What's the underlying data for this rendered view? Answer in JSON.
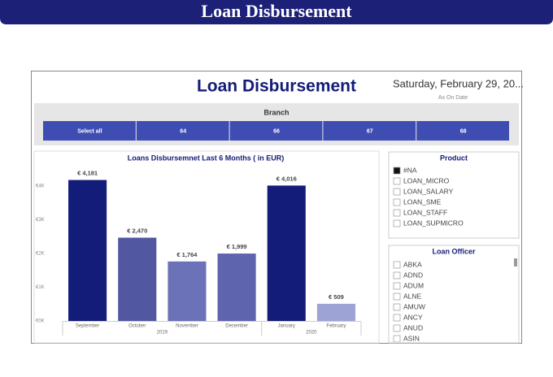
{
  "banner": {
    "title": "Loan Disbursement"
  },
  "header": {
    "title": "Loan Disbursement",
    "date": "Saturday, February 29, 20...",
    "date_caption": "As On Date"
  },
  "branch": {
    "title": "Branch",
    "options": [
      "Select all",
      "64",
      "66",
      "67",
      "68"
    ]
  },
  "chart_data": {
    "type": "bar",
    "title": "Loans Disbursemnet Last 6 Months ( in EUR)",
    "categories": [
      "September",
      "October",
      "November",
      "December",
      "January",
      "February"
    ],
    "groups": [
      "2019",
      "2020"
    ],
    "values": [
      4181,
      2470,
      1764,
      1999,
      4016,
      509
    ],
    "value_labels": [
      "€ 4,181",
      "€ 2,470",
      "€ 1,764",
      "€ 1,999",
      "€ 4,016",
      "€ 509"
    ],
    "colors": [
      "#131c78",
      "#5157a1",
      "#6b72b8",
      "#5e64ad",
      "#131c78",
      "#9ea3d6"
    ],
    "ylim": [
      0,
      4700
    ],
    "yticks": [
      {
        "value": 0,
        "label": "€0K"
      },
      {
        "value": 1000,
        "label": "€1K"
      },
      {
        "value": 2000,
        "label": "€2K"
      },
      {
        "value": 3000,
        "label": "€3K"
      },
      {
        "value": 4000,
        "label": "€4K"
      }
    ],
    "grid": false
  },
  "product": {
    "title": "Product",
    "items": [
      {
        "label": "#NA",
        "checked": true
      },
      {
        "label": "LOAN_MICRO",
        "checked": false
      },
      {
        "label": "LOAN_SALARY",
        "checked": false
      },
      {
        "label": "LOAN_SME",
        "checked": false
      },
      {
        "label": "LOAN_STAFF",
        "checked": false
      },
      {
        "label": "LOAN_SUPMICRO",
        "checked": false
      }
    ]
  },
  "officer": {
    "title": "Loan Officer",
    "items": [
      "ABKA",
      "ADND",
      "ADUM",
      "ALNE",
      "AMUW",
      "ANCY",
      "ANUD",
      "ASIN"
    ]
  }
}
